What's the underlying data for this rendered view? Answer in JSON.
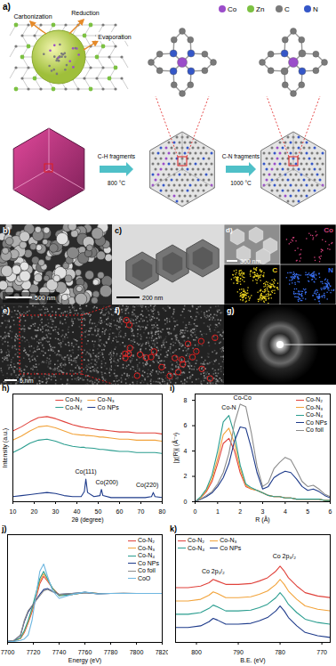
{
  "figure": {
    "a": {
      "label": "a)",
      "steps": [
        "Carbonization",
        "Reduction",
        "Evaporation"
      ],
      "atom_legend": [
        {
          "name": "Co",
          "color": "#9b4dca"
        },
        {
          "name": "Zn",
          "color": "#7cc142"
        },
        {
          "name": "C",
          "color": "#7a7a7a"
        },
        {
          "name": "N",
          "color": "#3557c8"
        }
      ],
      "arrows": [
        {
          "top": "C-H fragments",
          "bottom": "800 °C"
        },
        {
          "top": "C-N fragments",
          "bottom": "1000 °C"
        }
      ]
    },
    "b": {
      "label": "b)",
      "scale_bar": "500 nm"
    },
    "c": {
      "label": "c)",
      "scale_bar": "200 nm"
    },
    "d": {
      "label": "d)",
      "scale_bar": "300 nm",
      "maps": [
        {
          "name": "Co",
          "color": "#d0407a"
        },
        {
          "name": "C",
          "color": "#e8d020"
        },
        {
          "name": "N",
          "color": "#3a6ff0"
        }
      ]
    },
    "e": {
      "label": "e)",
      "scale_bar": "5 nm"
    },
    "f": {
      "label": "f)"
    },
    "g": {
      "label": "g)"
    }
  },
  "chart_data": [
    {
      "type": "line",
      "title": "h)",
      "x_label": "2θ (degree)",
      "y_label": "Intensity (a.u.)",
      "x": [
        10,
        14,
        18,
        22,
        26,
        30,
        34,
        38,
        42,
        43.5,
        44.2,
        45,
        48,
        50.8,
        51.5,
        52.2,
        56,
        60,
        64,
        68,
        72,
        75,
        75.8,
        76.6,
        80
      ],
      "xlim": [
        10,
        80
      ],
      "xticks": [
        10,
        20,
        30,
        40,
        50,
        60,
        70,
        80
      ],
      "ylim": [
        1,
        11.5
      ],
      "tick_labels": "x",
      "legend": "top",
      "series": [
        {
          "name": "Co-N₂",
          "color": "#e0433c",
          "values": [
            7.9,
            8.3,
            8.8,
            9.2,
            9.3,
            9.1,
            8.8,
            8.5,
            8.3,
            8.25,
            8.2,
            8.2,
            8.1,
            8.0,
            8.0,
            8.0,
            7.9,
            7.8,
            7.8,
            7.7,
            7.7,
            7.7,
            7.7,
            7.7,
            7.6
          ]
        },
        {
          "name": "Co-N₃",
          "color": "#f2a33a",
          "values": [
            7.0,
            7.4,
            7.9,
            8.3,
            8.4,
            8.2,
            7.9,
            7.6,
            7.5,
            7.5,
            7.45,
            7.45,
            7.4,
            7.3,
            7.3,
            7.3,
            7.2,
            7.1,
            7.1,
            7.0,
            7.0,
            7.0,
            7.0,
            7.0,
            6.9
          ]
        },
        {
          "name": "Co-N₄",
          "color": "#2a9d8f",
          "values": [
            5.8,
            6.2,
            6.7,
            7.0,
            7.1,
            6.9,
            6.6,
            6.4,
            6.3,
            6.3,
            6.25,
            6.25,
            6.2,
            6.1,
            6.1,
            6.1,
            6.0,
            5.9,
            5.9,
            5.8,
            5.8,
            5.8,
            5.8,
            5.8,
            5.7
          ]
        },
        {
          "name": "Co NPs",
          "color": "#1d3a8a",
          "values": [
            1.5,
            1.6,
            1.7,
            1.8,
            1.9,
            1.8,
            1.6,
            1.5,
            1.5,
            2.0,
            3.2,
            1.9,
            1.5,
            1.6,
            2.2,
            1.6,
            1.4,
            1.4,
            1.4,
            1.4,
            1.4,
            1.5,
            1.9,
            1.5,
            1.4
          ]
        }
      ],
      "annotations": [
        {
          "text": "Co(111)",
          "x": 44.2,
          "y": 3.9
        },
        {
          "text": "Co(200)",
          "x": 54,
          "y": 2.9
        },
        {
          "text": "Co(220)",
          "x": 73,
          "y": 2.6
        }
      ]
    },
    {
      "type": "line",
      "title": "i)",
      "x_label": "R (Å)",
      "y_label": "|χ(R)| (Å⁻³)",
      "x": [
        0,
        0.25,
        0.5,
        0.75,
        1,
        1.25,
        1.5,
        1.75,
        2,
        2.25,
        2.5,
        2.75,
        3,
        3.25,
        3.5,
        3.75,
        4,
        4.25,
        4.5,
        4.75,
        5,
        5.25,
        5.5,
        5.75,
        6
      ],
      "xlim": [
        0,
        6
      ],
      "xticks": [
        0,
        1,
        2,
        3,
        4,
        5,
        6
      ],
      "ylim": [
        0,
        8.5
      ],
      "yticks": [
        0,
        2,
        4,
        6,
        8
      ],
      "legend": "top right",
      "series": [
        {
          "name": "Co-N₂",
          "color": "#e0433c",
          "values": [
            0,
            0.3,
            0.8,
            1.6,
            3.0,
            4.6,
            5.0,
            4.0,
            2.3,
            1.2,
            1.0,
            0.9,
            0.7,
            0.5,
            0.4,
            0.4,
            0.3,
            0.3,
            0.2,
            0.2,
            0.2,
            0.2,
            0.2,
            0.1,
            0.1
          ]
        },
        {
          "name": "Co-N₃",
          "color": "#f2a33a",
          "values": [
            0,
            0.3,
            0.9,
            1.8,
            3.4,
            5.3,
            5.8,
            4.6,
            2.6,
            1.3,
            1.0,
            0.9,
            0.7,
            0.5,
            0.4,
            0.4,
            0.3,
            0.3,
            0.2,
            0.2,
            0.2,
            0.2,
            0.2,
            0.1,
            0.1
          ]
        },
        {
          "name": "Co-N₄",
          "color": "#2a9d8f",
          "values": [
            0,
            0.4,
            1.0,
            2.1,
            4.0,
            6.3,
            6.8,
            5.3,
            2.9,
            1.4,
            1.1,
            0.9,
            0.7,
            0.5,
            0.4,
            0.4,
            0.3,
            0.3,
            0.2,
            0.2,
            0.2,
            0.2,
            0.2,
            0.1,
            0.1
          ]
        },
        {
          "name": "Co NPs",
          "color": "#1d3a8a",
          "values": [
            0,
            0.2,
            0.4,
            0.7,
            1.2,
            1.9,
            3.0,
            4.8,
            5.9,
            5.8,
            4.2,
            2.3,
            1.0,
            1.2,
            1.9,
            2.2,
            2.4,
            2.3,
            1.8,
            1.2,
            0.9,
            1.0,
            0.8,
            0.5,
            0.3
          ]
        },
        {
          "name": "Co foil",
          "color": "#8c8c8c",
          "values": [
            0,
            0.2,
            0.5,
            0.8,
            1.4,
            2.3,
            3.8,
            6.2,
            7.7,
            7.5,
            5.4,
            2.8,
            1.2,
            1.5,
            2.6,
            3.1,
            3.5,
            3.3,
            2.5,
            1.6,
            1.2,
            1.3,
            1.0,
            0.6,
            0.4
          ]
        }
      ],
      "annotations": [
        {
          "text": "Co-N",
          "x": 1.5,
          "y": 7.4
        },
        {
          "text": "Co-Co",
          "x": 2.1,
          "y": 8.2
        }
      ]
    },
    {
      "type": "line",
      "title": "j)",
      "x_label": "Energy (eV)",
      "x": [
        7700,
        7705,
        7710,
        7713,
        7716,
        7719,
        7722,
        7725,
        7728,
        7731,
        7735,
        7740,
        7750,
        7760,
        7770,
        7780,
        7790,
        7800,
        7810,
        7820
      ],
      "xlim": [
        7700,
        7820
      ],
      "xticks": [
        7700,
        7720,
        7740,
        7760,
        7780,
        7800,
        7820
      ],
      "ylim": [
        0,
        2.2
      ],
      "tick_labels": "x",
      "legend": "top right",
      "series": [
        {
          "name": "Co-N₂",
          "color": "#e0433c",
          "values": [
            0.01,
            0.03,
            0.08,
            0.2,
            0.4,
            0.62,
            0.9,
            1.2,
            1.35,
            1.25,
            1.1,
            0.97,
            0.98,
            1.02,
            1.0,
            1.0,
            1.0,
            1.0,
            1.0,
            1.0
          ]
        },
        {
          "name": "Co-N₃",
          "color": "#f2a33a",
          "values": [
            0.01,
            0.03,
            0.08,
            0.22,
            0.42,
            0.66,
            0.95,
            1.25,
            1.4,
            1.28,
            1.1,
            0.96,
            0.98,
            1.02,
            1.0,
            1.0,
            1.0,
            1.0,
            1.0,
            1.0
          ]
        },
        {
          "name": "Co-N₄",
          "color": "#2a9d8f",
          "values": [
            0.01,
            0.03,
            0.09,
            0.24,
            0.45,
            0.7,
            1.0,
            1.3,
            1.45,
            1.3,
            1.1,
            0.95,
            0.98,
            1.02,
            1.0,
            1.0,
            1.0,
            1.0,
            1.0,
            1.0
          ]
        },
        {
          "name": "Co NPs",
          "color": "#1d3a8a",
          "values": [
            0.02,
            0.04,
            0.14,
            0.42,
            0.62,
            0.74,
            0.86,
            0.98,
            1.08,
            1.1,
            1.04,
            0.98,
            1.0,
            1.02,
            0.99,
            1.0,
            1.0,
            1.0,
            1.0,
            1.0
          ]
        },
        {
          "name": "Co foil",
          "color": "#8c8c8c",
          "values": [
            0.02,
            0.04,
            0.15,
            0.45,
            0.65,
            0.75,
            0.85,
            0.95,
            1.05,
            1.08,
            1.03,
            0.98,
            1.0,
            1.02,
            0.99,
            1.0,
            1.01,
            1.0,
            1.0,
            1.0
          ]
        },
        {
          "name": "CoO",
          "color": "#6fb7e0",
          "values": [
            0.01,
            0.02,
            0.04,
            0.07,
            0.15,
            0.45,
            0.95,
            1.45,
            1.6,
            1.35,
            1.05,
            0.9,
            0.98,
            1.03,
            0.99,
            1.0,
            1.0,
            1.0,
            1.0,
            1.0
          ]
        }
      ]
    },
    {
      "type": "line",
      "title": "k)",
      "x_label": "B.E. (eV)",
      "x": [
        805,
        802,
        799,
        797,
        796,
        795,
        793,
        790,
        787,
        785,
        783,
        781,
        780,
        779,
        778,
        776,
        774,
        771,
        768
      ],
      "xlim": [
        805,
        768
      ],
      "xticks": [
        800,
        790,
        780,
        770
      ],
      "ylim": [
        0,
        6.5
      ],
      "tick_labels": "x",
      "legend": "top left",
      "series": [
        {
          "name": "Co-N₂",
          "color": "#e0433c",
          "values": [
            3.3,
            3.3,
            3.4,
            3.6,
            3.8,
            3.7,
            3.5,
            3.5,
            3.55,
            3.7,
            3.9,
            4.3,
            4.6,
            4.3,
            3.9,
            3.4,
            3.0,
            2.8,
            2.7
          ]
        },
        {
          "name": "Co-N₃",
          "color": "#f2a33a",
          "values": [
            2.5,
            2.5,
            2.6,
            2.85,
            3.05,
            2.95,
            2.7,
            2.7,
            2.75,
            2.9,
            3.1,
            3.5,
            3.8,
            3.5,
            3.1,
            2.6,
            2.2,
            2.0,
            1.9
          ]
        },
        {
          "name": "Co-N₄",
          "color": "#2a9d8f",
          "values": [
            1.7,
            1.7,
            1.8,
            2.05,
            2.25,
            2.15,
            1.9,
            1.9,
            1.95,
            2.1,
            2.3,
            2.7,
            3.0,
            2.7,
            2.3,
            1.8,
            1.4,
            1.2,
            1.1
          ]
        },
        {
          "name": "Co NPs",
          "color": "#1d3a8a",
          "values": [
            0.9,
            0.9,
            1.0,
            1.25,
            1.45,
            1.35,
            1.1,
            1.1,
            1.15,
            1.3,
            1.5,
            1.9,
            2.2,
            1.9,
            1.5,
            1.0,
            0.6,
            0.4,
            0.3
          ]
        }
      ],
      "annotations": [
        {
          "text": "Co 2p₁/₂",
          "x": 796,
          "y": 4.3
        },
        {
          "text": "Co 2p₃/₂",
          "x": 779,
          "y": 5.2
        }
      ]
    }
  ]
}
